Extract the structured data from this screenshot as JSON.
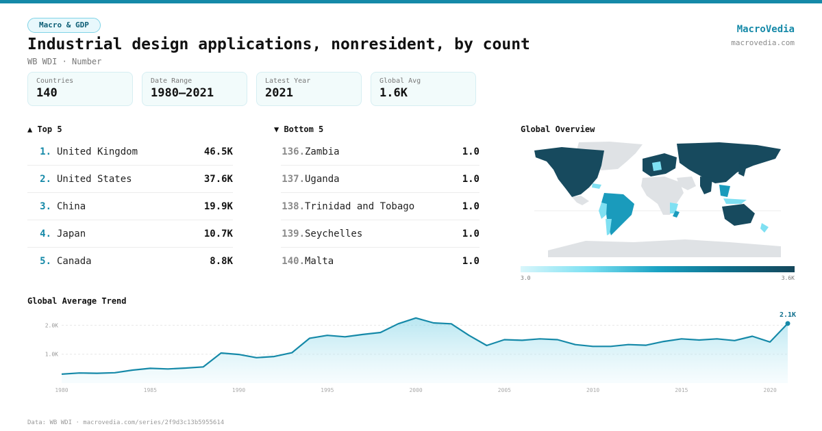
{
  "header": {
    "tag": "Macro & GDP",
    "title": "Industrial design applications, nonresident, by count",
    "subtitle": "WB WDI · Number",
    "brand": "MacroVedia",
    "brand_url": "macrovedia.com"
  },
  "stats": [
    {
      "label": "Countries",
      "value": "140"
    },
    {
      "label": "Date Range",
      "value": "1980–2021"
    },
    {
      "label": "Latest Year",
      "value": "2021"
    },
    {
      "label": "Global Avg",
      "value": "1.6K"
    }
  ],
  "top5": {
    "heading": "▲ Top 5",
    "items": [
      {
        "rank": "1.",
        "name": "United Kingdom",
        "value": "46.5K"
      },
      {
        "rank": "2.",
        "name": "United States",
        "value": "37.6K"
      },
      {
        "rank": "3.",
        "name": "China",
        "value": "19.9K"
      },
      {
        "rank": "4.",
        "name": "Japan",
        "value": "10.7K"
      },
      {
        "rank": "5.",
        "name": "Canada",
        "value": "8.8K"
      }
    ]
  },
  "bottom5": {
    "heading": "▼ Bottom 5",
    "items": [
      {
        "rank": "136.",
        "name": "Zambia",
        "value": "1.0"
      },
      {
        "rank": "137.",
        "name": "Uganda",
        "value": "1.0"
      },
      {
        "rank": "138.",
        "name": "Trinidad and Tobago",
        "value": "1.0"
      },
      {
        "rank": "139.",
        "name": "Seychelles",
        "value": "1.0"
      },
      {
        "rank": "140.",
        "name": "Malta",
        "value": "1.0"
      }
    ]
  },
  "map": {
    "heading": "Global Overview",
    "legend_min": "3.0",
    "legend_max": "3.6K",
    "colors": {
      "high": "#174a5e",
      "mid": "#1a9bbc",
      "low": "#7fe0f2",
      "none": "#dfe2e5"
    }
  },
  "trend": {
    "heading": "Global Average Trend",
    "last_label": "2.1K",
    "line_color": "#1589a8"
  },
  "footer": "Data: WB WDI · macrovedia.com/series/2f9d3c13b5955614",
  "chart_data": {
    "type": "area",
    "title": "Global Average Trend",
    "x": [
      1980,
      1981,
      1982,
      1983,
      1984,
      1985,
      1986,
      1987,
      1988,
      1989,
      1990,
      1991,
      1992,
      1993,
      1994,
      1995,
      1996,
      1997,
      1998,
      1999,
      2000,
      2001,
      2002,
      2003,
      2004,
      2005,
      2006,
      2007,
      2008,
      2009,
      2010,
      2011,
      2012,
      2013,
      2014,
      2015,
      2016,
      2017,
      2018,
      2019,
      2020,
      2021
    ],
    "series": [
      {
        "values": [
          310,
          350,
          340,
          360,
          450,
          510,
          490,
          520,
          560,
          1040,
          990,
          880,
          920,
          1050,
          1550,
          1650,
          1600,
          1680,
          1750,
          2050,
          2250,
          2080,
          2050,
          1650,
          1300,
          1500,
          1480,
          1530,
          1500,
          1330,
          1270,
          1270,
          1330,
          1310,
          1440,
          1530,
          1490,
          1530,
          1470,
          1620,
          1420,
          2060
        ]
      }
    ],
    "xticks": [
      1980,
      1985,
      1990,
      1995,
      2000,
      2005,
      2010,
      2015,
      2020
    ],
    "yticks": [
      {
        "value": 1000,
        "label": "1.0K"
      },
      {
        "value": 2000,
        "label": "2.0K"
      }
    ],
    "ylim": [
      0,
      2600
    ],
    "grid": true
  }
}
